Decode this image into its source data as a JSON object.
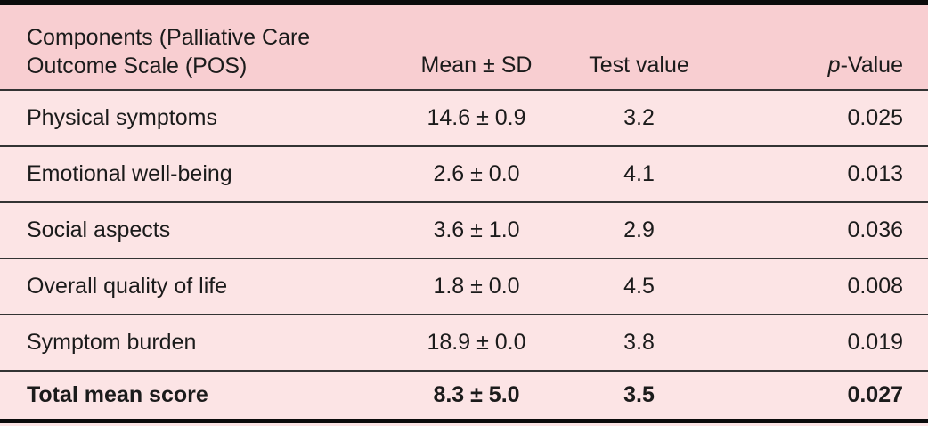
{
  "table": {
    "header": {
      "component": "Components (Palliative Care\nOutcome Scale (POS)",
      "mean_sd": "Mean ± SD",
      "test_value": "Test value",
      "p_value_prefix": "p",
      "p_value_suffix": "-Value"
    },
    "rows": [
      {
        "component": "Physical symptoms",
        "mean_sd": "14.6 ± 0.9",
        "test_value": "3.2",
        "p_value": "0.025"
      },
      {
        "component": "Emotional well-being",
        "mean_sd": "2.6 ± 0.0",
        "test_value": "4.1",
        "p_value": "0.013"
      },
      {
        "component": "Social aspects",
        "mean_sd": "3.6 ± 1.0",
        "test_value": "2.9",
        "p_value": "0.036"
      },
      {
        "component": "Overall quality of life",
        "mean_sd": "1.8 ± 0.0",
        "test_value": "4.5",
        "p_value": "0.008"
      },
      {
        "component": "Symptom burden",
        "mean_sd": "18.9 ± 0.0",
        "test_value": "3.8",
        "p_value": "0.019"
      },
      {
        "component": "Total mean score",
        "mean_sd": "8.3 ± 5.0",
        "test_value": "3.5",
        "p_value": "0.027"
      }
    ],
    "colors": {
      "header_bg": "#f8ced1",
      "row_bg": "#fce4e5",
      "rule": "#333333",
      "frame": "#0b0b0b",
      "text": "#1b1b1b"
    }
  }
}
